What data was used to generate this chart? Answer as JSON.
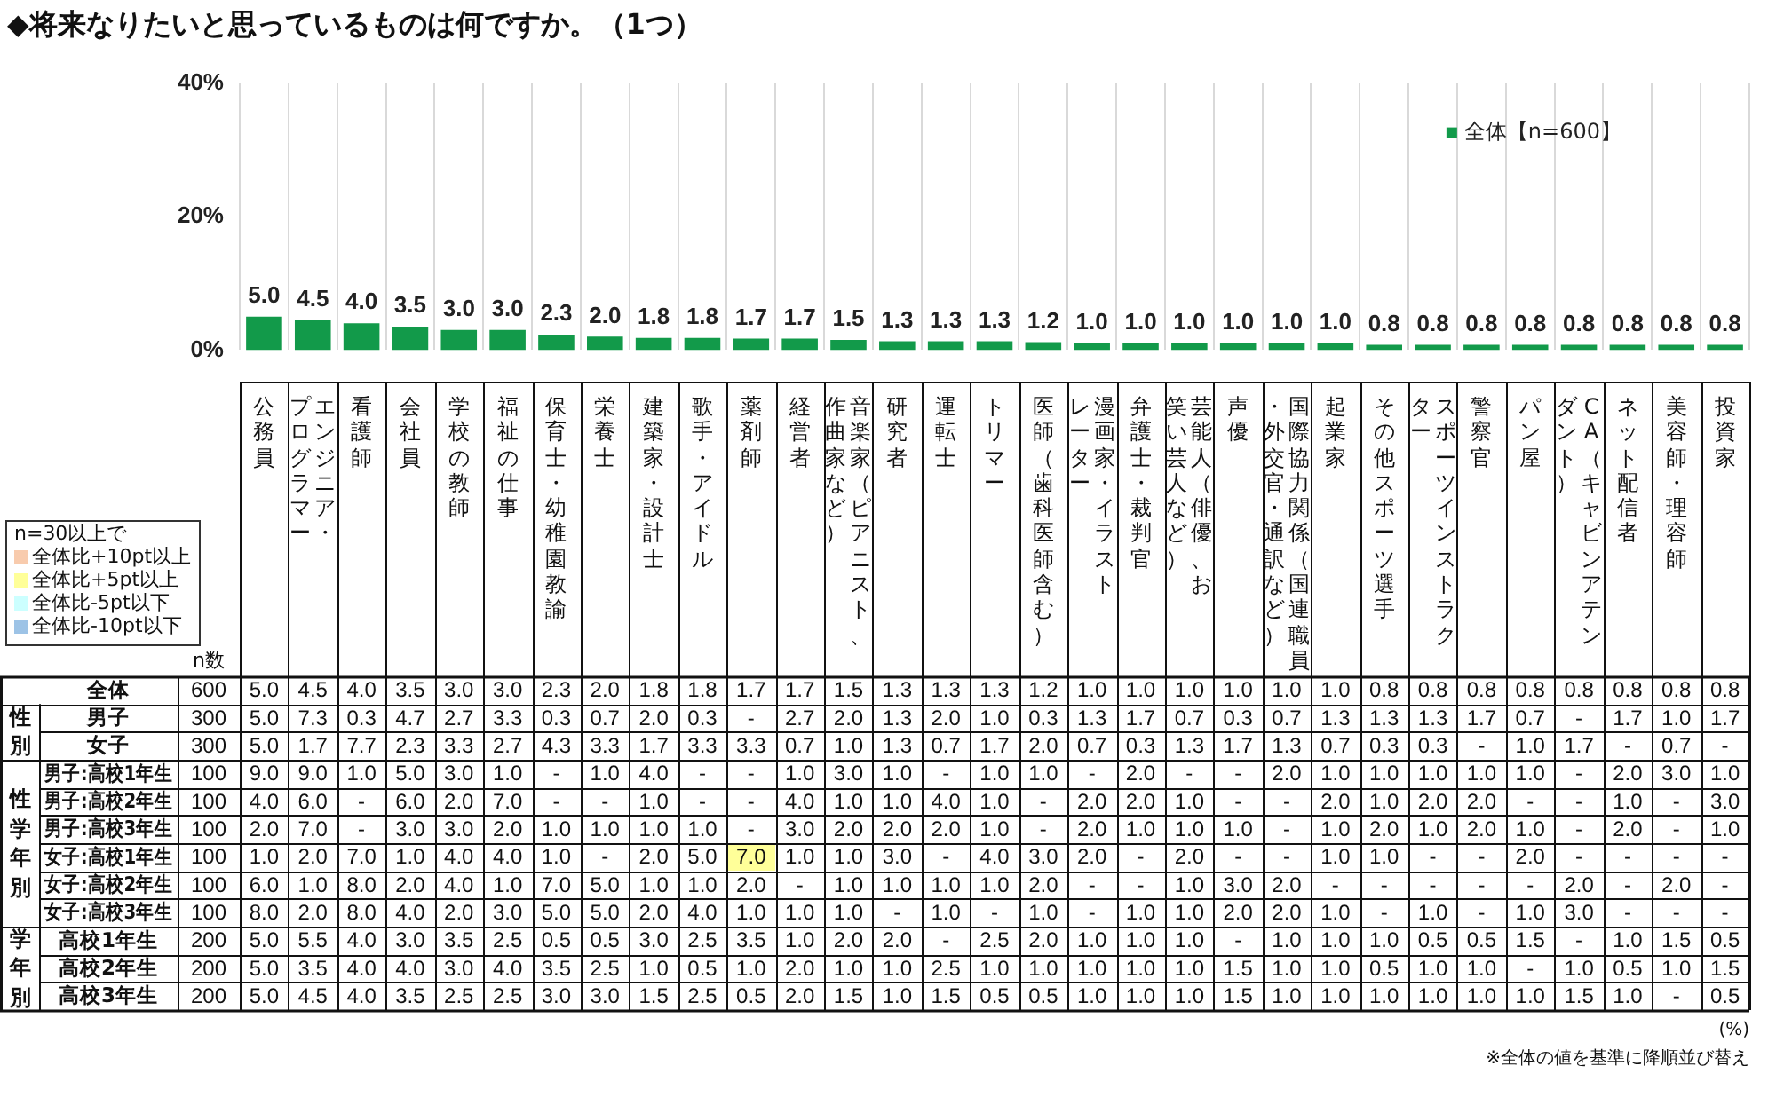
{
  "chart_data": [
    {
      "type": "bar",
      "title": "◆将来なりたいと思っているものは何ですか。（1つ）",
      "categories": [
        "公務員",
        "エンジニア・プログラマー",
        "看護師",
        "会社員",
        "学校の教師",
        "福祉の仕事",
        "保育士・幼稚園教諭",
        "栄養士",
        "建築家・設計士",
        "歌手・アイドル",
        "薬剤師",
        "経営者",
        "音楽家（ピアニスト、作曲家など）",
        "研究者",
        "運転士",
        "トリマー",
        "医師（歯科医師含む）",
        "漫画家・イラストレーター",
        "弁護士・裁判官",
        "芸能人（俳優、お笑い芸人など）",
        "声優",
        "国際協力関係（国連職員・外交官・通訳など）",
        "起業家",
        "その他スポーツ選手",
        "スポーツインストラクター",
        "警察官",
        "パン屋",
        "CA（キャビンアテンダント）",
        "ネット配信者",
        "美容師・理容師",
        "投資家"
      ],
      "series": [
        {
          "name": "全体【n=600】",
          "color": "#129a4a",
          "values": [
            5.0,
            4.5,
            4.0,
            3.5,
            3.0,
            3.0,
            2.3,
            2.0,
            1.8,
            1.8,
            1.7,
            1.7,
            1.5,
            1.3,
            1.3,
            1.3,
            1.2,
            1.0,
            1.0,
            1.0,
            1.0,
            1.0,
            1.0,
            0.8,
            0.8,
            0.8,
            0.8,
            0.8,
            0.8,
            0.8,
            0.8
          ],
          "value_labels": [
            "5.0",
            "4.5",
            "4.0",
            "3.5",
            "3.0",
            "3.0",
            "2.3",
            "2.0",
            "1.8",
            "1.8",
            "1.7",
            "1.7",
            "1.5",
            "1.3",
            "1.3",
            "1.3",
            "1.2",
            "1.0",
            "1.0",
            "1.0",
            "1.0",
            "1.0",
            "1.0",
            "0.8",
            "0.8",
            "0.8",
            "0.8",
            "0.8",
            "0.8",
            "0.8",
            "0.8"
          ]
        }
      ],
      "ylim": [
        0,
        40
      ],
      "yticks": [
        {
          "value": 0,
          "label": "0%"
        },
        {
          "value": 20,
          "label": "20%"
        },
        {
          "value": 40,
          "label": "40%"
        }
      ],
      "grid": "x",
      "legend": "top right"
    },
    {
      "type": "heatmap",
      "categories": [
        "公務員",
        "エンジニア・プログラマー",
        "看護師",
        "会社員",
        "学校の教師",
        "福祉の仕事",
        "保育士・幼稚園教諭",
        "栄養士",
        "建築家・設計士",
        "歌手・アイドル",
        "薬剤師",
        "経営者",
        "音楽家（ピアニスト、作曲家など）",
        "研究者",
        "運転士",
        "トリマー",
        "医師（歯科医師含む）",
        "漫画家・イラストレーター",
        "弁護士・裁判官",
        "芸能人（俳優、お笑い芸人など）",
        "声優",
        "国際協力関係（国連職員・外交官・通訳など）",
        "起業家",
        "その他スポーツ選手",
        "スポーツインストラクター",
        "警察官",
        "パン屋",
        "CA（キャビンアテンダント）",
        "ネット配信者",
        "美容師・理容師",
        "投資家"
      ],
      "y_categories": [
        "全体",
        "男子",
        "女子",
        "男子:高校1年生",
        "男子:高校2年生",
        "男子:高校3年生",
        "女子:高校1年生",
        "女子:高校2年生",
        "女子:高校3年生",
        "高校1年生",
        "高校2年生",
        "高校3年生"
      ],
      "y2_categories": [
        "600",
        "300",
        "300",
        "100",
        "100",
        "100",
        "100",
        "100",
        "100",
        "200",
        "200",
        "200"
      ],
      "tick_labels": "y",
      "cells": [
        [
          5.0,
          4.5,
          4.0,
          3.5,
          3.0,
          3.0,
          2.3,
          2.0,
          1.8,
          1.8,
          1.7,
          1.7,
          1.5,
          1.3,
          1.3,
          1.3,
          1.2,
          1.0,
          1.0,
          1.0,
          1.0,
          1.0,
          1.0,
          0.8,
          0.8,
          0.8,
          0.8,
          0.8,
          0.8,
          0.8,
          0.8
        ],
        [
          5.0,
          7.3,
          0.3,
          4.7,
          2.7,
          3.3,
          0.3,
          0.7,
          2.0,
          0.3,
          null,
          2.7,
          2.0,
          1.3,
          2.0,
          1.0,
          0.3,
          1.3,
          1.7,
          0.7,
          0.3,
          0.7,
          1.3,
          1.3,
          1.3,
          1.7,
          0.7,
          null,
          1.7,
          1.0,
          1.7
        ],
        [
          5.0,
          1.7,
          7.7,
          2.3,
          3.3,
          2.7,
          4.3,
          3.3,
          1.7,
          3.3,
          3.3,
          0.7,
          1.0,
          1.3,
          0.7,
          1.7,
          2.0,
          0.7,
          0.3,
          1.3,
          1.7,
          1.3,
          0.7,
          0.3,
          0.3,
          null,
          1.0,
          1.7,
          null,
          0.7,
          null
        ],
        [
          9.0,
          9.0,
          1.0,
          5.0,
          3.0,
          1.0,
          null,
          1.0,
          4.0,
          null,
          null,
          1.0,
          3.0,
          1.0,
          null,
          1.0,
          1.0,
          null,
          2.0,
          null,
          null,
          2.0,
          1.0,
          1.0,
          1.0,
          1.0,
          1.0,
          null,
          2.0,
          3.0,
          1.0
        ],
        [
          4.0,
          6.0,
          null,
          6.0,
          2.0,
          7.0,
          null,
          null,
          1.0,
          null,
          null,
          4.0,
          1.0,
          1.0,
          4.0,
          1.0,
          null,
          2.0,
          2.0,
          1.0,
          null,
          null,
          2.0,
          1.0,
          2.0,
          2.0,
          null,
          null,
          1.0,
          null,
          3.0
        ],
        [
          2.0,
          7.0,
          null,
          3.0,
          3.0,
          2.0,
          1.0,
          1.0,
          1.0,
          1.0,
          null,
          3.0,
          2.0,
          2.0,
          2.0,
          1.0,
          null,
          2.0,
          1.0,
          1.0,
          1.0,
          null,
          1.0,
          2.0,
          1.0,
          2.0,
          1.0,
          null,
          2.0,
          null,
          1.0
        ],
        [
          1.0,
          2.0,
          7.0,
          1.0,
          4.0,
          4.0,
          1.0,
          null,
          2.0,
          5.0,
          7.0,
          1.0,
          1.0,
          3.0,
          null,
          4.0,
          3.0,
          2.0,
          null,
          2.0,
          null,
          null,
          1.0,
          1.0,
          null,
          null,
          2.0,
          null,
          null,
          null,
          null
        ],
        [
          6.0,
          1.0,
          8.0,
          2.0,
          4.0,
          1.0,
          7.0,
          5.0,
          1.0,
          1.0,
          2.0,
          null,
          1.0,
          1.0,
          1.0,
          1.0,
          2.0,
          null,
          null,
          1.0,
          3.0,
          2.0,
          null,
          null,
          null,
          null,
          null,
          2.0,
          null,
          2.0,
          null
        ],
        [
          8.0,
          2.0,
          8.0,
          4.0,
          2.0,
          3.0,
          5.0,
          5.0,
          2.0,
          4.0,
          1.0,
          1.0,
          1.0,
          null,
          1.0,
          null,
          1.0,
          null,
          1.0,
          1.0,
          2.0,
          2.0,
          1.0,
          null,
          1.0,
          null,
          1.0,
          3.0,
          null,
          null,
          null
        ],
        [
          5.0,
          5.5,
          4.0,
          3.0,
          3.5,
          2.5,
          0.5,
          0.5,
          3.0,
          2.5,
          3.5,
          1.0,
          2.0,
          2.0,
          null,
          2.5,
          2.0,
          1.0,
          1.0,
          1.0,
          null,
          1.0,
          1.0,
          1.0,
          0.5,
          0.5,
          1.5,
          null,
          1.0,
          1.5,
          0.5
        ],
        [
          5.0,
          3.5,
          4.0,
          4.0,
          3.0,
          4.0,
          3.5,
          2.5,
          1.0,
          0.5,
          1.0,
          2.0,
          1.0,
          1.0,
          2.5,
          1.0,
          1.0,
          1.0,
          1.0,
          1.0,
          1.5,
          1.0,
          1.0,
          0.5,
          1.0,
          1.0,
          null,
          1.0,
          0.5,
          1.0,
          1.5
        ],
        [
          5.0,
          4.5,
          4.0,
          3.5,
          2.5,
          2.5,
          3.0,
          3.0,
          1.5,
          2.5,
          0.5,
          2.0,
          1.5,
          1.0,
          1.5,
          0.5,
          0.5,
          1.0,
          1.0,
          1.0,
          1.5,
          1.0,
          1.0,
          1.0,
          1.0,
          1.0,
          1.0,
          1.5,
          1.0,
          null,
          0.5
        ]
      ],
      "cell_labels": [
        [
          "5.0",
          "4.5",
          "4.0",
          "3.5",
          "3.0",
          "3.0",
          "2.3",
          "2.0",
          "1.8",
          "1.8",
          "1.7",
          "1.7",
          "1.5",
          "1.3",
          "1.3",
          "1.3",
          "1.2",
          "1.0",
          "1.0",
          "1.0",
          "1.0",
          "1.0",
          "1.0",
          "0.8",
          "0.8",
          "0.8",
          "0.8",
          "0.8",
          "0.8",
          "0.8",
          "0.8"
        ],
        [
          "5.0",
          "7.3",
          "0.3",
          "4.7",
          "2.7",
          "3.3",
          "0.3",
          "0.7",
          "2.0",
          "0.3",
          "-",
          "2.7",
          "2.0",
          "1.3",
          "2.0",
          "1.0",
          "0.3",
          "1.3",
          "1.7",
          "0.7",
          "0.3",
          "0.7",
          "1.3",
          "1.3",
          "1.3",
          "1.7",
          "0.7",
          "-",
          "1.7",
          "1.0",
          "1.7"
        ],
        [
          "5.0",
          "1.7",
          "7.7",
          "2.3",
          "3.3",
          "2.7",
          "4.3",
          "3.3",
          "1.7",
          "3.3",
          "3.3",
          "0.7",
          "1.0",
          "1.3",
          "0.7",
          "1.7",
          "2.0",
          "0.7",
          "0.3",
          "1.3",
          "1.7",
          "1.3",
          "0.7",
          "0.3",
          "0.3",
          "-",
          "1.0",
          "1.7",
          "-",
          "0.7",
          "-"
        ],
        [
          "9.0",
          "9.0",
          "1.0",
          "5.0",
          "3.0",
          "1.0",
          "-",
          "1.0",
          "4.0",
          "-",
          "-",
          "1.0",
          "3.0",
          "1.0",
          "-",
          "1.0",
          "1.0",
          "-",
          "2.0",
          "-",
          "-",
          "2.0",
          "1.0",
          "1.0",
          "1.0",
          "1.0",
          "1.0",
          "-",
          "2.0",
          "3.0",
          "1.0"
        ],
        [
          "4.0",
          "6.0",
          "-",
          "6.0",
          "2.0",
          "7.0",
          "-",
          "-",
          "1.0",
          "-",
          "-",
          "4.0",
          "1.0",
          "1.0",
          "4.0",
          "1.0",
          "-",
          "2.0",
          "2.0",
          "1.0",
          "-",
          "-",
          "2.0",
          "1.0",
          "2.0",
          "2.0",
          "-",
          "-",
          "1.0",
          "-",
          "3.0"
        ],
        [
          "2.0",
          "7.0",
          "-",
          "3.0",
          "3.0",
          "2.0",
          "1.0",
          "1.0",
          "1.0",
          "1.0",
          "-",
          "3.0",
          "2.0",
          "2.0",
          "2.0",
          "1.0",
          "-",
          "2.0",
          "1.0",
          "1.0",
          "1.0",
          "-",
          "1.0",
          "2.0",
          "1.0",
          "2.0",
          "1.0",
          "-",
          "2.0",
          "-",
          "1.0"
        ],
        [
          "1.0",
          "2.0",
          "7.0",
          "1.0",
          "4.0",
          "4.0",
          "1.0",
          "-",
          "2.0",
          "5.0",
          "7.0",
          "1.0",
          "1.0",
          "3.0",
          "-",
          "4.0",
          "3.0",
          "2.0",
          "-",
          "2.0",
          "-",
          "-",
          "1.0",
          "1.0",
          "-",
          "-",
          "2.0",
          "-",
          "-",
          "-",
          "-"
        ],
        [
          "6.0",
          "1.0",
          "8.0",
          "2.0",
          "4.0",
          "1.0",
          "7.0",
          "5.0",
          "1.0",
          "1.0",
          "2.0",
          "-",
          "1.0",
          "1.0",
          "1.0",
          "1.0",
          "2.0",
          "-",
          "-",
          "1.0",
          "3.0",
          "2.0",
          "-",
          "-",
          "-",
          "-",
          "-",
          "2.0",
          "-",
          "2.0",
          "-"
        ],
        [
          "8.0",
          "2.0",
          "8.0",
          "4.0",
          "2.0",
          "3.0",
          "5.0",
          "5.0",
          "2.0",
          "4.0",
          "1.0",
          "1.0",
          "1.0",
          "-",
          "1.0",
          "-",
          "1.0",
          "-",
          "1.0",
          "1.0",
          "2.0",
          "2.0",
          "1.0",
          "-",
          "1.0",
          "-",
          "1.0",
          "3.0",
          "-",
          "-",
          "-"
        ],
        [
          "5.0",
          "5.5",
          "4.0",
          "3.0",
          "3.5",
          "2.5",
          "0.5",
          "0.5",
          "3.0",
          "2.5",
          "3.5",
          "1.0",
          "2.0",
          "2.0",
          "-",
          "2.5",
          "2.0",
          "1.0",
          "1.0",
          "1.0",
          "-",
          "1.0",
          "1.0",
          "1.0",
          "0.5",
          "0.5",
          "1.5",
          "-",
          "1.0",
          "1.5",
          "0.5"
        ],
        [
          "5.0",
          "3.5",
          "4.0",
          "4.0",
          "3.0",
          "4.0",
          "3.5",
          "2.5",
          "1.0",
          "0.5",
          "1.0",
          "2.0",
          "1.0",
          "1.0",
          "2.5",
          "1.0",
          "1.0",
          "1.0",
          "1.0",
          "1.0",
          "1.5",
          "1.0",
          "1.0",
          "0.5",
          "1.0",
          "1.0",
          "-",
          "1.0",
          "0.5",
          "1.0",
          "1.5"
        ],
        [
          "5.0",
          "4.5",
          "4.0",
          "3.5",
          "2.5",
          "2.5",
          "3.0",
          "3.0",
          "1.5",
          "2.5",
          "0.5",
          "2.0",
          "1.5",
          "1.0",
          "1.5",
          "0.5",
          "0.5",
          "1.0",
          "1.0",
          "1.0",
          "1.5",
          "1.0",
          "1.0",
          "1.0",
          "1.0",
          "1.0",
          "1.0",
          "1.5",
          "1.0",
          "-",
          "0.5"
        ]
      ],
      "colors": [
        [
          "#ffffff",
          "#ffffff",
          "#ffffff",
          "#ffffff",
          "#ffffff",
          "#ffffff",
          "#ffffff",
          "#ffffff",
          "#ffffff",
          "#ffffff",
          "#ffffff",
          "#ffffff",
          "#ffffff",
          "#ffffff",
          "#ffffff",
          "#ffffff",
          "#ffffff",
          "#ffffff",
          "#ffffff",
          "#ffffff",
          "#ffffff",
          "#ffffff",
          "#ffffff",
          "#ffffff",
          "#ffffff",
          "#ffffff",
          "#ffffff",
          "#ffffff",
          "#ffffff",
          "#ffffff",
          "#ffffff"
        ],
        [
          "#ffffff",
          "#ffffff",
          "#ffffff",
          "#ffffff",
          "#ffffff",
          "#ffffff",
          "#ffffff",
          "#ffffff",
          "#ffffff",
          "#ffffff",
          "#ffffff",
          "#ffffff",
          "#ffffff",
          "#ffffff",
          "#ffffff",
          "#ffffff",
          "#ffffff",
          "#ffffff",
          "#ffffff",
          "#ffffff",
          "#ffffff",
          "#ffffff",
          "#ffffff",
          "#ffffff",
          "#ffffff",
          "#ffffff",
          "#ffffff",
          "#ffffff",
          "#ffffff",
          "#ffffff",
          "#ffffff"
        ],
        [
          "#ffffff",
          "#ffffff",
          "#ffffff",
          "#ffffff",
          "#ffffff",
          "#ffffff",
          "#ffffff",
          "#ffffff",
          "#ffffff",
          "#ffffff",
          "#ffffff",
          "#ffffff",
          "#ffffff",
          "#ffffff",
          "#ffffff",
          "#ffffff",
          "#ffffff",
          "#ffffff",
          "#ffffff",
          "#ffffff",
          "#ffffff",
          "#ffffff",
          "#ffffff",
          "#ffffff",
          "#ffffff",
          "#ffffff",
          "#ffffff",
          "#ffffff",
          "#ffffff",
          "#ffffff",
          "#ffffff"
        ],
        [
          "#ffffff",
          "#ffffff",
          "#ffffff",
          "#ffffff",
          "#ffffff",
          "#ffffff",
          "#ffffff",
          "#ffffff",
          "#ffffff",
          "#ffffff",
          "#ffffff",
          "#ffffff",
          "#ffffff",
          "#ffffff",
          "#ffffff",
          "#ffffff",
          "#ffffff",
          "#ffffff",
          "#ffffff",
          "#ffffff",
          "#ffffff",
          "#ffffff",
          "#ffffff",
          "#ffffff",
          "#ffffff",
          "#ffffff",
          "#ffffff",
          "#ffffff",
          "#ffffff",
          "#ffffff",
          "#ffffff"
        ],
        [
          "#ffffff",
          "#ffffff",
          "#ffffff",
          "#ffffff",
          "#ffffff",
          "#ffffff",
          "#ffffff",
          "#ffffff",
          "#ffffff",
          "#ffffff",
          "#ffffff",
          "#ffffff",
          "#ffffff",
          "#ffffff",
          "#ffffff",
          "#ffffff",
          "#ffffff",
          "#ffffff",
          "#ffffff",
          "#ffffff",
          "#ffffff",
          "#ffffff",
          "#ffffff",
          "#ffffff",
          "#ffffff",
          "#ffffff",
          "#ffffff",
          "#ffffff",
          "#ffffff",
          "#ffffff",
          "#ffffff"
        ],
        [
          "#ffffff",
          "#ffffff",
          "#ffffff",
          "#ffffff",
          "#ffffff",
          "#ffffff",
          "#ffffff",
          "#ffffff",
          "#ffffff",
          "#ffffff",
          "#ffffff",
          "#ffffff",
          "#ffffff",
          "#ffffff",
          "#ffffff",
          "#ffffff",
          "#ffffff",
          "#ffffff",
          "#ffffff",
          "#ffffff",
          "#ffffff",
          "#ffffff",
          "#ffffff",
          "#ffffff",
          "#ffffff",
          "#ffffff",
          "#ffffff",
          "#ffffff",
          "#ffffff",
          "#ffffff",
          "#ffffff"
        ],
        [
          "#ffffff",
          "#ffffff",
          "#ffffff",
          "#ffffff",
          "#ffffff",
          "#ffffff",
          "#ffffff",
          "#ffffff",
          "#ffffff",
          "#ffffff",
          "#ffff99",
          "#ffffff",
          "#ffffff",
          "#ffffff",
          "#ffffff",
          "#ffffff",
          "#ffffff",
          "#ffffff",
          "#ffffff",
          "#ffffff",
          "#ffffff",
          "#ffffff",
          "#ffffff",
          "#ffffff",
          "#ffffff",
          "#ffffff",
          "#ffffff",
          "#ffffff",
          "#ffffff",
          "#ffffff",
          "#ffffff"
        ],
        [
          "#ffffff",
          "#ffffff",
          "#ffffff",
          "#ffffff",
          "#ffffff",
          "#ffffff",
          "#ffffff",
          "#ffffff",
          "#ffffff",
          "#ffffff",
          "#ffffff",
          "#ffffff",
          "#ffffff",
          "#ffffff",
          "#ffffff",
          "#ffffff",
          "#ffffff",
          "#ffffff",
          "#ffffff",
          "#ffffff",
          "#ffffff",
          "#ffffff",
          "#ffffff",
          "#ffffff",
          "#ffffff",
          "#ffffff",
          "#ffffff",
          "#ffffff",
          "#ffffff",
          "#ffffff",
          "#ffffff"
        ],
        [
          "#ffffff",
          "#ffffff",
          "#ffffff",
          "#ffffff",
          "#ffffff",
          "#ffffff",
          "#ffffff",
          "#ffffff",
          "#ffffff",
          "#ffffff",
          "#ffffff",
          "#ffffff",
          "#ffffff",
          "#ffffff",
          "#ffffff",
          "#ffffff",
          "#ffffff",
          "#ffffff",
          "#ffffff",
          "#ffffff",
          "#ffffff",
          "#ffffff",
          "#ffffff",
          "#ffffff",
          "#ffffff",
          "#ffffff",
          "#ffffff",
          "#ffffff",
          "#ffffff",
          "#ffffff",
          "#ffffff"
        ],
        [
          "#ffffff",
          "#ffffff",
          "#ffffff",
          "#ffffff",
          "#ffffff",
          "#ffffff",
          "#ffffff",
          "#ffffff",
          "#ffffff",
          "#ffffff",
          "#ffffff",
          "#ffffff",
          "#ffffff",
          "#ffffff",
          "#ffffff",
          "#ffffff",
          "#ffffff",
          "#ffffff",
          "#ffffff",
          "#ffffff",
          "#ffffff",
          "#ffffff",
          "#ffffff",
          "#ffffff",
          "#ffffff",
          "#ffffff",
          "#ffffff",
          "#ffffff",
          "#ffffff",
          "#ffffff",
          "#ffffff"
        ],
        [
          "#ffffff",
          "#ffffff",
          "#ffffff",
          "#ffffff",
          "#ffffff",
          "#ffffff",
          "#ffffff",
          "#ffffff",
          "#ffffff",
          "#ffffff",
          "#ffffff",
          "#ffffff",
          "#ffffff",
          "#ffffff",
          "#ffffff",
          "#ffffff",
          "#ffffff",
          "#ffffff",
          "#ffffff",
          "#ffffff",
          "#ffffff",
          "#ffffff",
          "#ffffff",
          "#ffffff",
          "#ffffff",
          "#ffffff",
          "#ffffff",
          "#ffffff",
          "#ffffff",
          "#ffffff",
          "#ffffff"
        ],
        [
          "#ffffff",
          "#ffffff",
          "#ffffff",
          "#ffffff",
          "#ffffff",
          "#ffffff",
          "#ffffff",
          "#ffffff",
          "#ffffff",
          "#ffffff",
          "#ffffff",
          "#ffffff",
          "#ffffff",
          "#ffffff",
          "#ffffff",
          "#ffffff",
          "#ffffff",
          "#ffffff",
          "#ffffff",
          "#ffffff",
          "#ffffff",
          "#ffffff",
          "#ffffff",
          "#ffffff",
          "#ffffff",
          "#ffffff",
          "#ffffff",
          "#ffffff",
          "#ffffff",
          "#ffffff",
          "#ffffff"
        ]
      ],
      "annotations": [
        "性別",
        "性学年別",
        "学年別",
        "n数",
        "n=30以上で",
        "全体比+10pt以上",
        "全体比+5pt以上",
        "全体比-5pt以下",
        "全体比-10pt以下",
        "(%)",
        "※全体の値を基準に降順並び替え"
      ]
    }
  ]
}
